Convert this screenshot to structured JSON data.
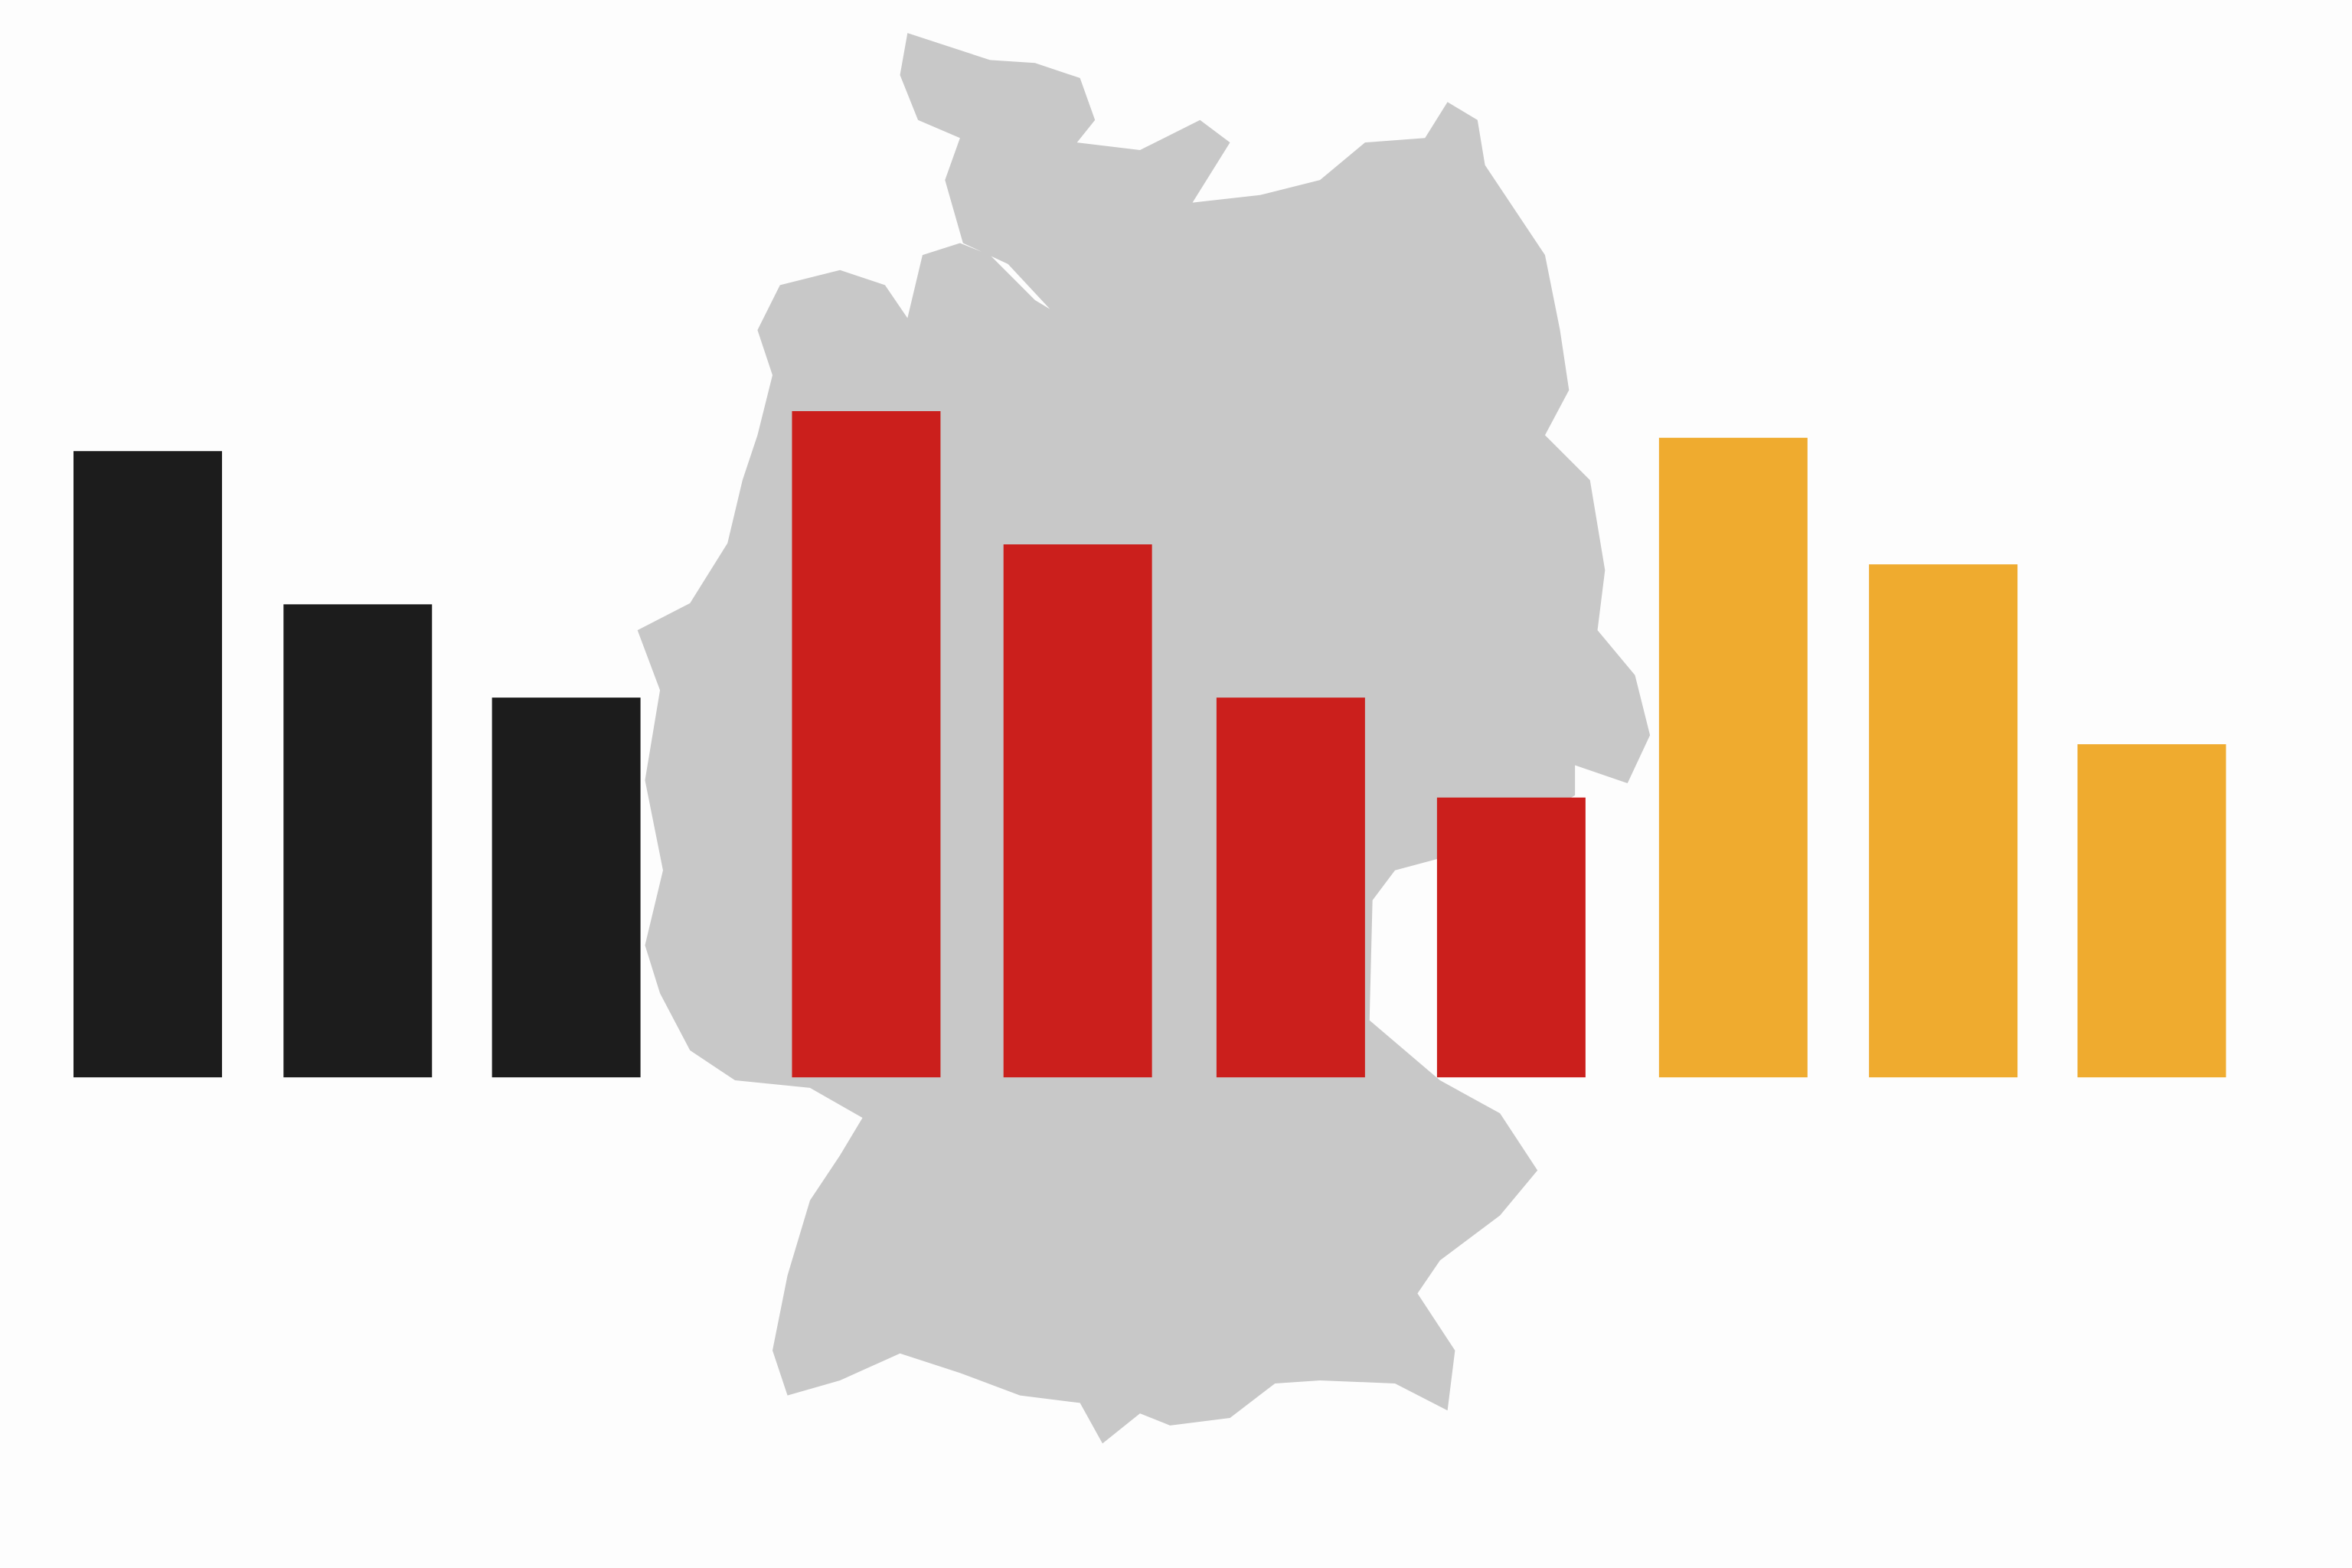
{
  "chart_data": {
    "type": "bar",
    "title": "",
    "xlabel": "",
    "ylabel": "",
    "ylim": [
      0,
      100
    ],
    "grid": false,
    "axes_visible": false,
    "background_image": "germany-map-silhouette",
    "colors": {
      "black": "#1c1c1c",
      "red": "#cb1f1c",
      "gold": "#efab2f",
      "map": "#c8c8c8",
      "background": "#fdfdfd"
    },
    "groups": [
      {
        "color": "#1c1c1c",
        "values": [
          94,
          71,
          57
        ]
      },
      {
        "color": "#cb1f1c",
        "values": [
          100,
          80,
          57,
          42
        ]
      },
      {
        "color": "#efab2f",
        "values": [
          96,
          77,
          50
        ]
      }
    ]
  }
}
